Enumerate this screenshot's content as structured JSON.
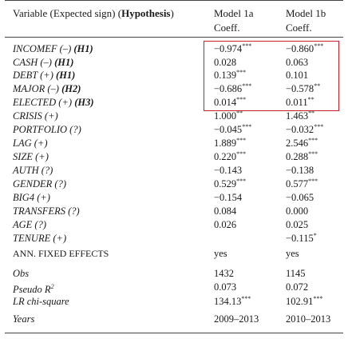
{
  "header": {
    "variable_label": "Variable (Expected sign) (",
    "hypothesis_word": "Hypothesis",
    "close_paren": ")",
    "model_1a": "Model 1a",
    "model_1b": "Model 1b",
    "coeff_1a": "Coeff.",
    "coeff_1b": "Coeff."
  },
  "rows": [
    {
      "label": "INCOMEF (–) ",
      "hyp": "(H1)",
      "a": "−0.974",
      "a_sig": "***",
      "b": "−0.860",
      "b_sig": "***"
    },
    {
      "label": "CASH (–) ",
      "hyp": "(H1)",
      "a": "0.028",
      "a_sig": "",
      "b": "0.063",
      "b_sig": ""
    },
    {
      "label": "DEBT (+) ",
      "hyp": "(H1)",
      "a": "0.139",
      "a_sig": "***",
      "b": "0.101",
      "b_sig": ""
    },
    {
      "label": "MAJOR (–) ",
      "hyp": "(H2)",
      "a": "−0.686",
      "a_sig": "***",
      "b": "−0.578",
      "b_sig": "**"
    },
    {
      "label": "ELECTED (+) ",
      "hyp": "(H3)",
      "a": "0.014",
      "a_sig": "***",
      "b": "0.011",
      "b_sig": "**"
    },
    {
      "label": "CRISIS (+)",
      "hyp": "",
      "a": "1.000",
      "a_sig": "**",
      "b": "1.463",
      "b_sig": "**"
    },
    {
      "label": "PORTFOLIO (?)",
      "hyp": "",
      "a": "−0.045",
      "a_sig": "***",
      "b": "−0.032",
      "b_sig": "***"
    },
    {
      "label": "LAG (+)",
      "hyp": "",
      "a": "1.889",
      "a_sig": "***",
      "b": "2.546",
      "b_sig": "***"
    },
    {
      "label": "SIZE (+)",
      "hyp": "",
      "a": "0.220",
      "a_sig": "***",
      "b": "0.288",
      "b_sig": "***"
    },
    {
      "label": "AUTH (?)",
      "hyp": "",
      "a": "−0.143",
      "a_sig": "",
      "b": "−0.138",
      "b_sig": ""
    },
    {
      "label": "GENDER (?)",
      "hyp": "",
      "a": "0.529",
      "a_sig": "***",
      "b": "0.577",
      "b_sig": "***"
    },
    {
      "label": "BIG4 (+)",
      "hyp": "",
      "a": "−0.154",
      "a_sig": "",
      "b": "−0.065",
      "b_sig": ""
    },
    {
      "label": "TRANSFERS (?)",
      "hyp": "",
      "a": "0.084",
      "a_sig": "",
      "b": "0.000",
      "b_sig": ""
    },
    {
      "label": "AGE (?)",
      "hyp": "",
      "a": "0.026",
      "a_sig": "",
      "b": "0.025",
      "b_sig": ""
    },
    {
      "label": "TENURE (+)",
      "hyp": "",
      "a": "",
      "a_sig": "",
      "b": "−0.115",
      "b_sig": "*"
    },
    {
      "label": "ANN. FIXED EFFECTS",
      "hyp": "",
      "a": "yes",
      "a_sig": "",
      "b": "yes",
      "b_sig": ""
    }
  ],
  "stats": [
    {
      "label": "Obs",
      "a": "1432",
      "a_sig": "",
      "b": "1145",
      "b_sig": ""
    },
    {
      "label": "Pseudo R",
      "label_sup": "2",
      "a": "0.073",
      "a_sig": "",
      "b": "0.072",
      "b_sig": ""
    },
    {
      "label": "LR chi-square",
      "a": "134.13",
      "a_sig": "***",
      "b": "102.91",
      "b_sig": "***"
    }
  ],
  "years": {
    "label": "Years",
    "a": "2009–2013",
    "b": "2010–2013"
  },
  "highlight_color": "#c8202a"
}
